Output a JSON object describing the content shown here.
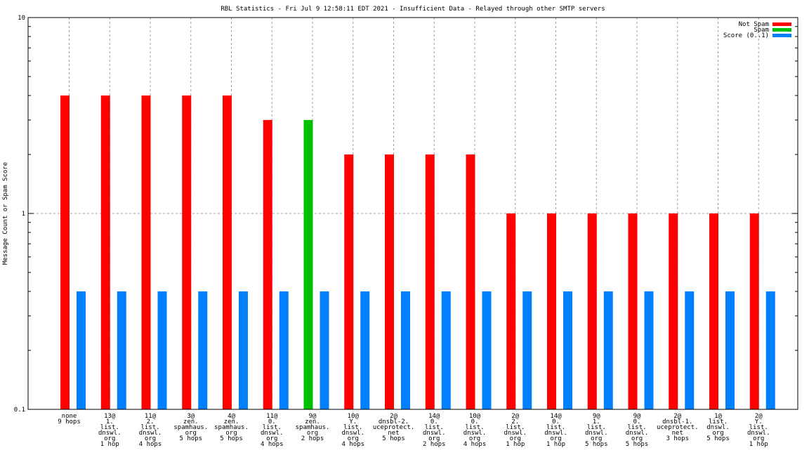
{
  "chart_data": {
    "type": "bar",
    "title": "RBL Statistics - Fri Jul  9 12:58:11 EDT 2021 - Insufficient Data - Relayed through other SMTP servers",
    "xlabel": "",
    "ylabel": "Message Count or Spam Score",
    "yscale": "log",
    "ylim": [
      0.1,
      10
    ],
    "yticks": [
      "0.1",
      "1",
      "10"
    ],
    "grid": true,
    "legend_position": "top-right",
    "categories": [
      [
        "none",
        "9 hops"
      ],
      [
        "13@",
        "1.",
        "list.",
        "dnswl.",
        "org",
        "1 hop"
      ],
      [
        "11@",
        "2.",
        "list.",
        "dnswl.",
        "org",
        "4 hops"
      ],
      [
        "3@",
        "zen.",
        "spamhaus.",
        "org",
        "5 hops"
      ],
      [
        "4@",
        "zen.",
        "spamhaus.",
        "org",
        "5 hops"
      ],
      [
        "11@",
        "0.",
        "list.",
        "dnswl.",
        "org",
        "4 hops"
      ],
      [
        "9@",
        "zen.",
        "spamhaus.",
        "org",
        "2 hops"
      ],
      [
        "10@",
        "Y.",
        "list.",
        "dnswl.",
        "org",
        "4 hops"
      ],
      [
        "2@",
        "dnsbl-2.",
        "uceprotect.",
        "net",
        "5 hops"
      ],
      [
        "14@",
        "0.",
        "list.",
        "dnswl.",
        "org",
        "2 hops"
      ],
      [
        "10@",
        "0.",
        "list.",
        "dnswl.",
        "org",
        "4 hops"
      ],
      [
        "2@",
        "2.",
        "list.",
        "dnswl.",
        "org",
        "1 hop"
      ],
      [
        "14@",
        "0.",
        "list.",
        "dnswl.",
        "org",
        "1 hop"
      ],
      [
        "9@",
        "1.",
        "list.",
        "dnswl.",
        "org",
        "5 hops"
      ],
      [
        "9@",
        "0.",
        "list.",
        "dnswl.",
        "org",
        "5 hops"
      ],
      [
        "2@",
        "dnsbl-1.",
        "uceprotect.",
        "net",
        "3 hops"
      ],
      [
        "1@",
        "list.",
        "dnswl.",
        "org",
        "5 hops"
      ],
      [
        "2@",
        "Y.",
        "list.",
        "dnswl.",
        "org",
        "1 hop"
      ]
    ],
    "series": [
      {
        "name": "Not Spam",
        "color": "#ff0000",
        "values": [
          4,
          4,
          4,
          4,
          4,
          3,
          null,
          2,
          2,
          2,
          2,
          1,
          1,
          1,
          1,
          1,
          1,
          1
        ]
      },
      {
        "name": "Spam",
        "color": "#00c000",
        "values": [
          null,
          null,
          null,
          null,
          null,
          null,
          3,
          null,
          null,
          null,
          null,
          null,
          null,
          null,
          null,
          null,
          null,
          null
        ]
      },
      {
        "name": "Score (0..1)",
        "color": "#0080ff",
        "values": [
          0.4,
          0.4,
          0.4,
          0.4,
          0.4,
          0.4,
          0.4,
          0.4,
          0.4,
          0.4,
          0.4,
          0.4,
          0.4,
          0.4,
          0.4,
          0.4,
          0.4,
          0.4
        ]
      }
    ]
  }
}
